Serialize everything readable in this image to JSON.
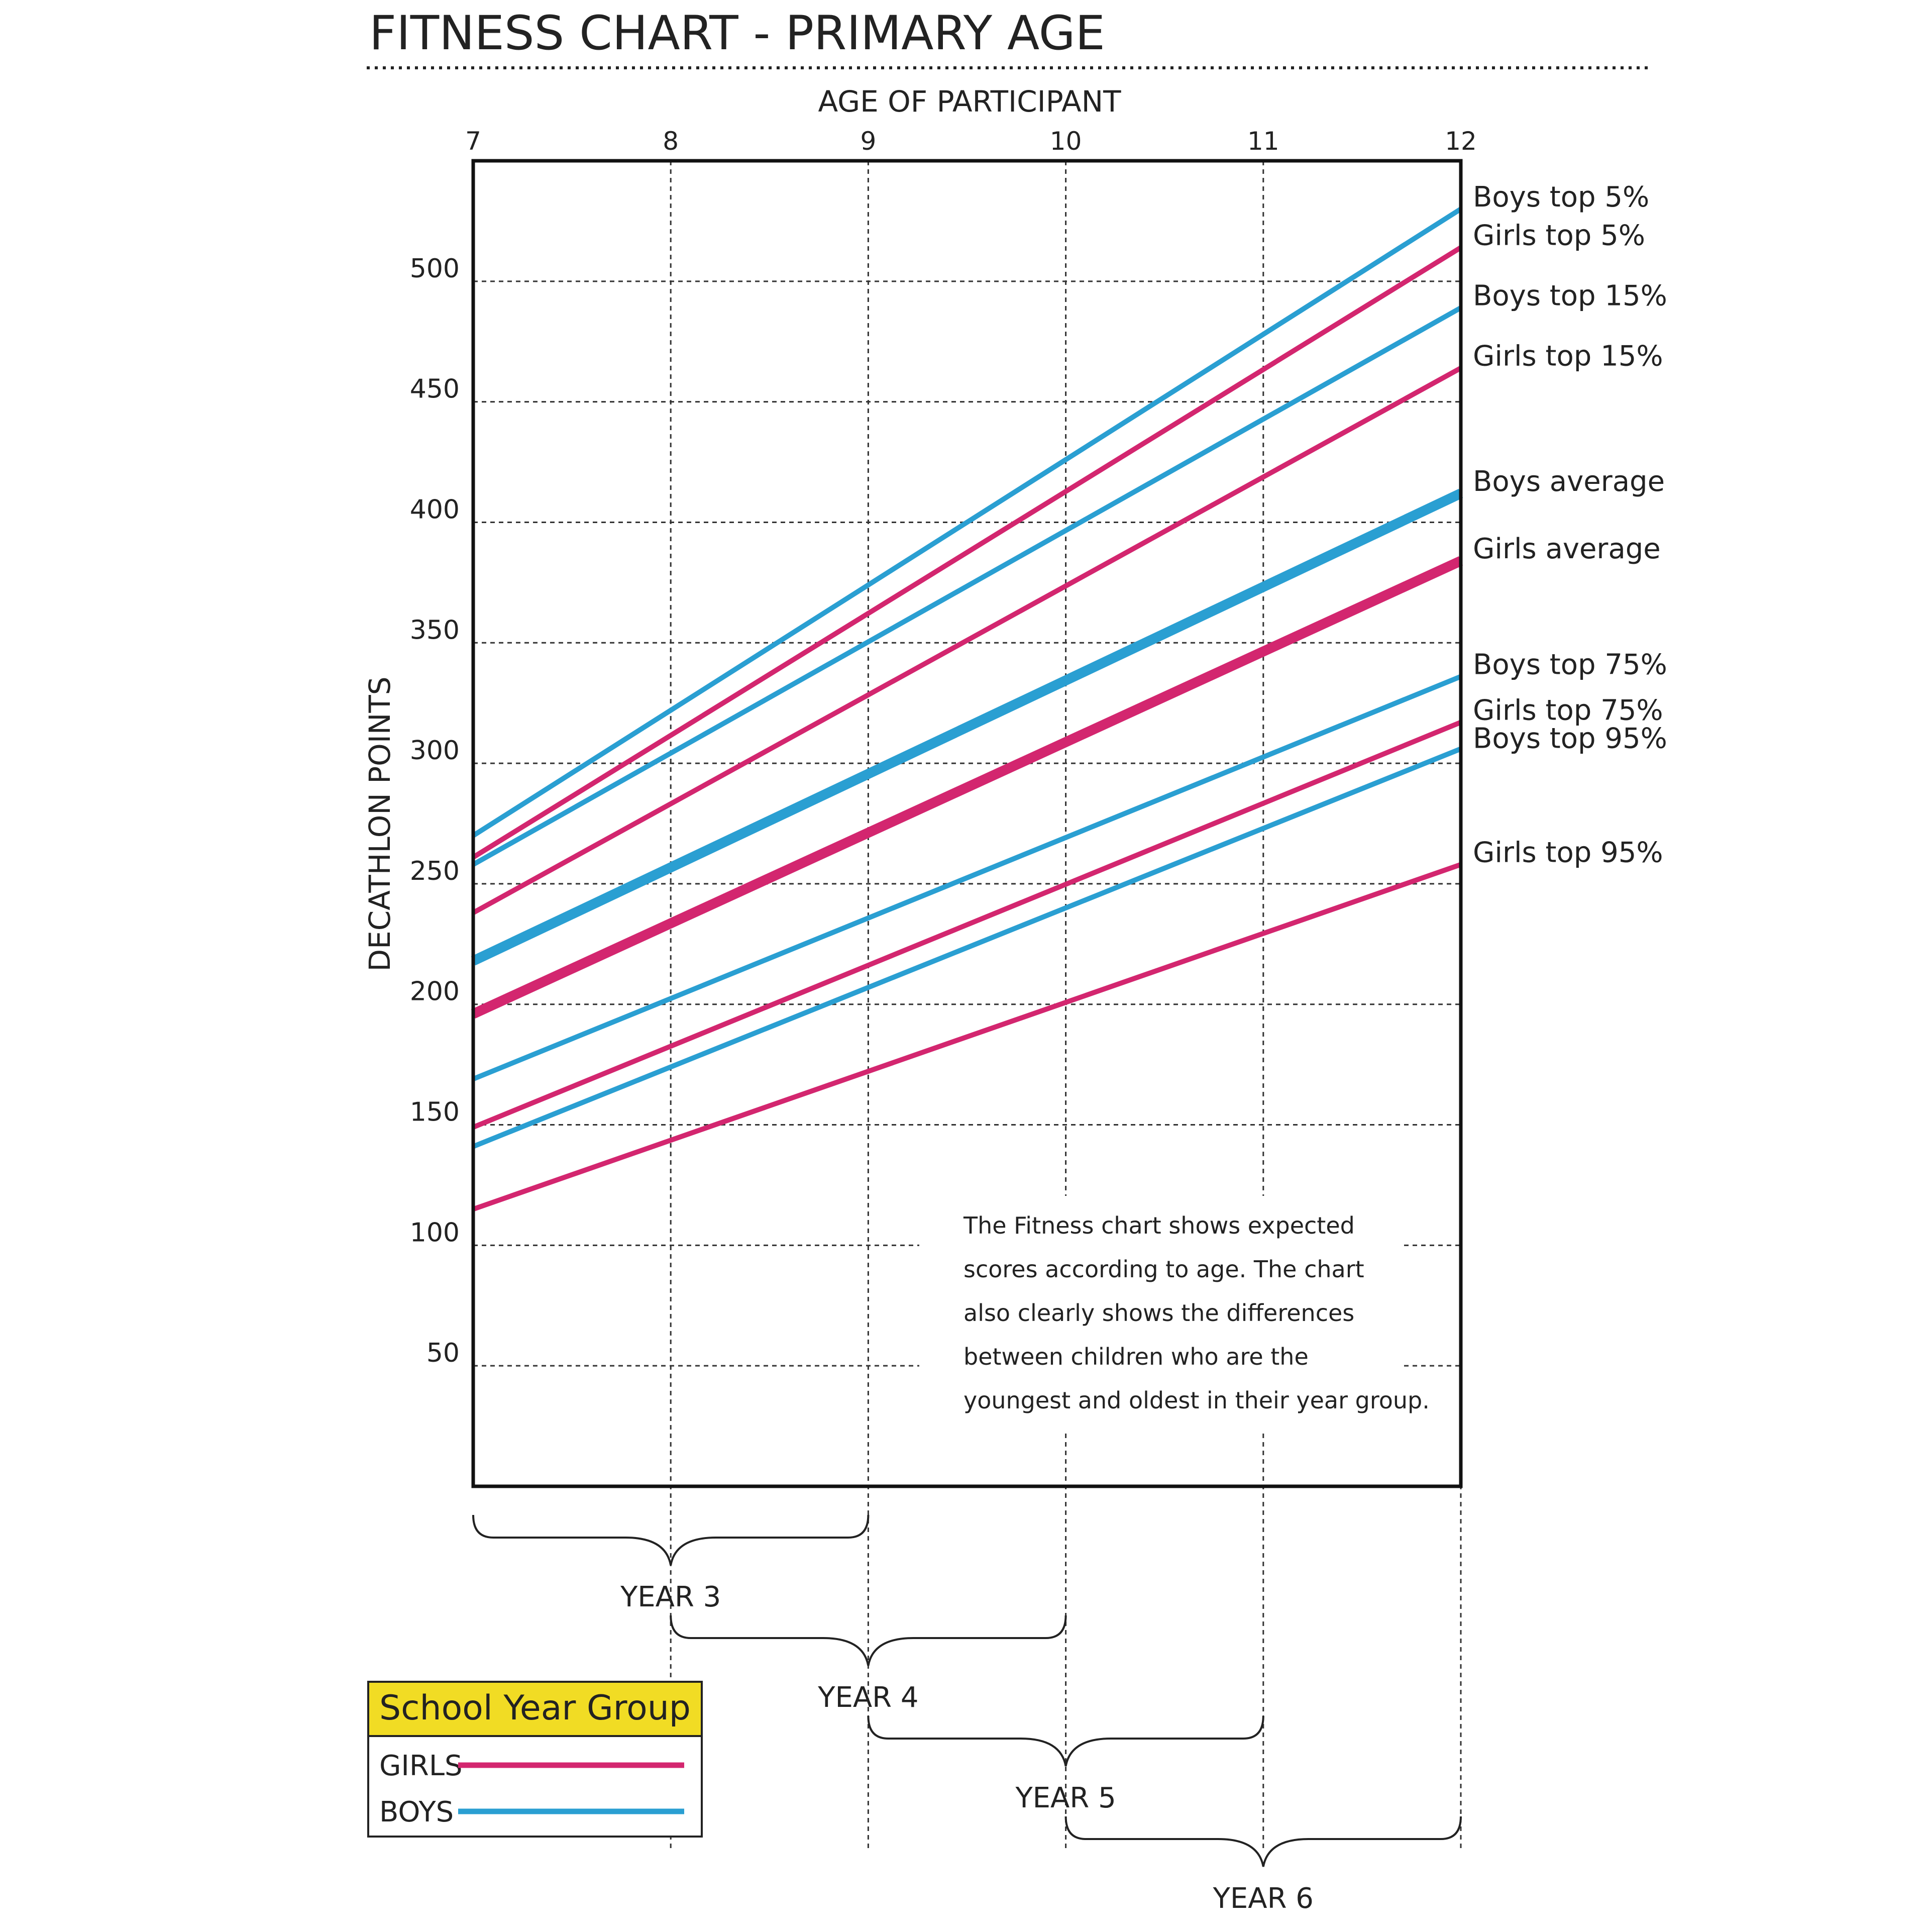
{
  "page": {
    "title": "FITNESS CHART - PRIMARY AGE",
    "note_lines": [
      "The Fitness chart shows expected",
      "scores according to age. The chart",
      "also clearly shows the differences",
      "between children who are the",
      "youngest and oldest in their year group."
    ]
  },
  "legend": {
    "heading": "School Year Group",
    "heading_bg": "#f1dc24",
    "girls_label": "GIRLS",
    "boys_label": "BOYS"
  },
  "colors": {
    "girls": "#d3266f",
    "boys": "#2a9fd2"
  },
  "chart_data": {
    "type": "line",
    "xlabel": "AGE OF PARTICIPANT",
    "ylabel": "DECATHLON POINTS",
    "xlim": [
      7,
      12
    ],
    "ylim": [
      0,
      550
    ],
    "x_ticks": [
      "7",
      "8",
      "9",
      "10",
      "11",
      "12"
    ],
    "y_ticks": [
      "50",
      "100",
      "150",
      "200",
      "250",
      "300",
      "350",
      "400",
      "450",
      "500"
    ],
    "grid": true,
    "x": [
      7,
      12
    ],
    "series": [
      {
        "name": "Boys top 5%",
        "group": "boys",
        "weight": "normal",
        "values": [
          270,
          530
        ]
      },
      {
        "name": "Girls top 5%",
        "group": "girls",
        "weight": "normal",
        "values": [
          261,
          514
        ]
      },
      {
        "name": "Boys top 15%",
        "group": "boys",
        "weight": "normal",
        "values": [
          258,
          489
        ]
      },
      {
        "name": "Girls top 15%",
        "group": "girls",
        "weight": "normal",
        "values": [
          238,
          464
        ]
      },
      {
        "name": "Boys average",
        "group": "boys",
        "weight": "bold",
        "values": [
          218,
          412
        ]
      },
      {
        "name": "Girls average",
        "group": "girls",
        "weight": "bold",
        "values": [
          196,
          384
        ]
      },
      {
        "name": "Boys top 75%",
        "group": "boys",
        "weight": "normal",
        "values": [
          169,
          336
        ]
      },
      {
        "name": "Girls top 75%",
        "group": "girls",
        "weight": "normal",
        "values": [
          149,
          317
        ]
      },
      {
        "name": "Boys top 95%",
        "group": "boys",
        "weight": "normal",
        "values": [
          141,
          306
        ]
      },
      {
        "name": "Girls top 95%",
        "group": "girls",
        "weight": "normal",
        "values": [
          115,
          258
        ]
      }
    ],
    "year_groups": [
      {
        "label": "YEAR 3",
        "from": 7,
        "to": 9
      },
      {
        "label": "YEAR 4",
        "from": 8,
        "to": 10
      },
      {
        "label": "YEAR 5",
        "from": 9,
        "to": 11
      },
      {
        "label": "YEAR 6",
        "from": 10,
        "to": 12
      }
    ]
  }
}
